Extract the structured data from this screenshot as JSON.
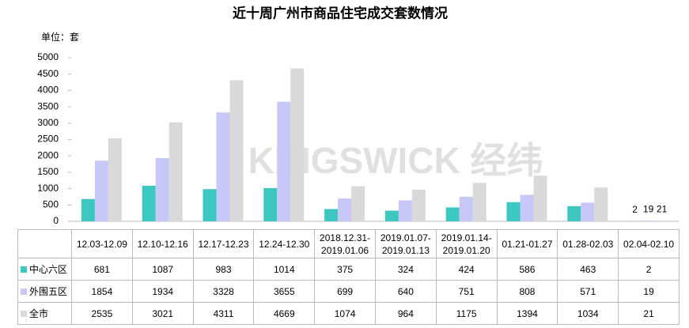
{
  "chart_data": {
    "type": "bar",
    "title": "近十周广州市商品住宅成交套数情况",
    "unit": "单位：套",
    "watermark": "KINGSWICK 经纬",
    "categories": [
      "12.03-12.09",
      "12.10-12.16",
      "12.17-12.23",
      "12.24-12.30",
      "2018.12.31-2019.01.06",
      "2019.01.07-2019.01.13",
      "2019.01.14-2019.01.20",
      "01.21-01.27",
      "01.28-02.03",
      "02.04-02.10"
    ],
    "series": [
      {
        "name": "中心六区",
        "color": "#3cc8c0",
        "values": [
          681,
          1087,
          983,
          1014,
          375,
          324,
          424,
          586,
          463,
          2
        ]
      },
      {
        "name": "外围五区",
        "color": "#c8c8f8",
        "values": [
          1854,
          1934,
          3328,
          3655,
          699,
          640,
          751,
          808,
          571,
          19
        ]
      },
      {
        "name": "全市",
        "color": "#d9d9d9",
        "values": [
          2535,
          3021,
          4311,
          4669,
          1074,
          964,
          1175,
          1394,
          1034,
          21
        ]
      }
    ],
    "ylim": [
      0,
      5000
    ],
    "yticks": [
      0,
      500,
      1000,
      1500,
      2000,
      2500,
      3000,
      3500,
      4000,
      4500,
      5000
    ]
  }
}
